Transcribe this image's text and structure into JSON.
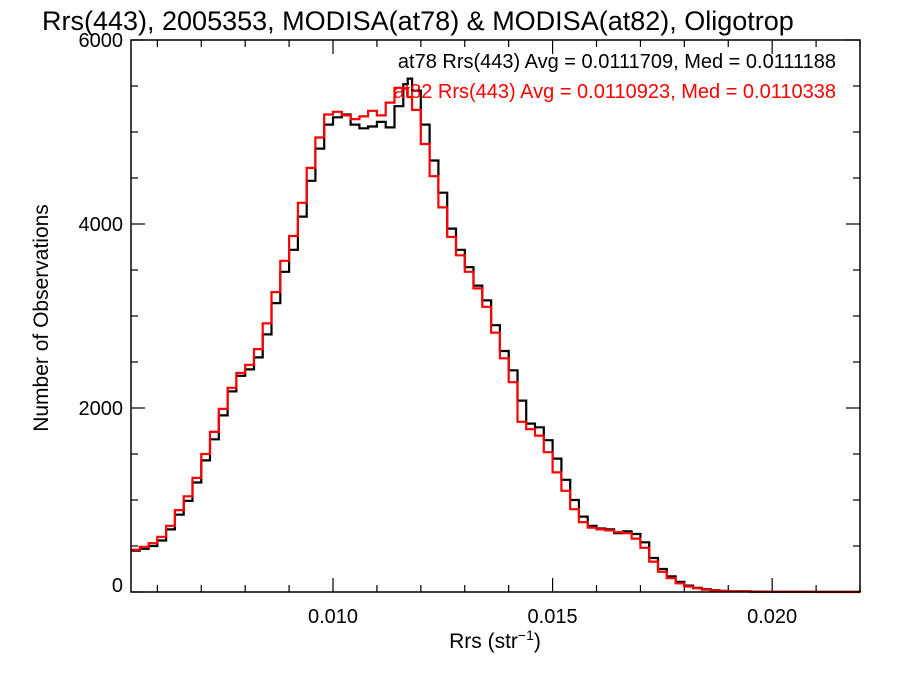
{
  "chart_data": {
    "type": "line",
    "style": "step-histogram",
    "title": "Rrs(443), 2005353, MODISA(at78) & MODISA(at82), Oligotrop",
    "xlabel": "Rrs (str",
    "xlabel_sup": "−1",
    "xlabel_close": ")",
    "ylabel": "Number of Observations",
    "xlim": [
      0.0054,
      0.022
    ],
    "ylim": [
      0,
      6000
    ],
    "x_ticks": [
      {
        "value": 0.01,
        "label": "0.010"
      },
      {
        "value": 0.015,
        "label": "0.015"
      },
      {
        "value": 0.02,
        "label": "0.020"
      }
    ],
    "y_ticks": [
      {
        "value": 0,
        "label": "0"
      },
      {
        "value": 2000,
        "label": "2000"
      },
      {
        "value": 4000,
        "label": "4000"
      },
      {
        "value": 6000,
        "label": "6000"
      }
    ],
    "annotations": [
      {
        "text": "at78 Rrs(443) Avg = 0.0111709, Med = 0.0111188",
        "color": "#000000"
      },
      {
        "text": "at82 Rrs(443) Avg = 0.0110923, Med = 0.0110338",
        "color": "#ff0000"
      }
    ],
    "series": [
      {
        "color": "#000000",
        "x": [
          0.0054,
          0.0056,
          0.0058,
          0.006,
          0.0062,
          0.0064,
          0.0066,
          0.0068,
          0.007,
          0.0072,
          0.0074,
          0.0076,
          0.0078,
          0.008,
          0.0082,
          0.0084,
          0.0086,
          0.0088,
          0.009,
          0.0092,
          0.0094,
          0.0096,
          0.0098,
          0.01,
          0.0102,
          0.0104,
          0.0106,
          0.0108,
          0.011,
          0.0112,
          0.0114,
          0.0116,
          0.0117,
          0.0118,
          0.012,
          0.0122,
          0.0124,
          0.0126,
          0.0128,
          0.013,
          0.0132,
          0.0134,
          0.0136,
          0.0138,
          0.014,
          0.0142,
          0.0144,
          0.0146,
          0.0148,
          0.015,
          0.0152,
          0.0154,
          0.0156,
          0.0158,
          0.016,
          0.0162,
          0.0164,
          0.0166,
          0.0168,
          0.017,
          0.0172,
          0.0174,
          0.0176,
          0.0178,
          0.018,
          0.0182,
          0.0184,
          0.0186,
          0.0188,
          0.019,
          0.0195,
          0.02,
          0.021,
          0.022
        ],
        "y": [
          450,
          470,
          500,
          560,
          680,
          840,
          990,
          1190,
          1430,
          1660,
          1920,
          2180,
          2350,
          2420,
          2550,
          2800,
          3140,
          3480,
          3720,
          4080,
          4470,
          4820,
          5080,
          5160,
          5190,
          5080,
          5040,
          5060,
          5110,
          5050,
          5280,
          5520,
          5580,
          5450,
          5080,
          4690,
          4340,
          3950,
          3720,
          3530,
          3330,
          3170,
          2900,
          2620,
          2410,
          2080,
          1830,
          1790,
          1650,
          1450,
          1220,
          1000,
          820,
          720,
          690,
          680,
          640,
          660,
          630,
          540,
          370,
          250,
          170,
          110,
          70,
          45,
          30,
          20,
          12,
          8,
          4,
          2,
          1,
          0
        ]
      },
      {
        "color": "#ff0000",
        "x": [
          0.0054,
          0.0056,
          0.0058,
          0.006,
          0.0062,
          0.0064,
          0.0066,
          0.0068,
          0.007,
          0.0072,
          0.0074,
          0.0076,
          0.0078,
          0.008,
          0.0082,
          0.0084,
          0.0086,
          0.0088,
          0.009,
          0.0092,
          0.0094,
          0.0096,
          0.0098,
          0.01,
          0.0102,
          0.0104,
          0.0106,
          0.0108,
          0.011,
          0.0112,
          0.0114,
          0.0116,
          0.0117,
          0.0118,
          0.012,
          0.0122,
          0.0124,
          0.0126,
          0.0128,
          0.013,
          0.0132,
          0.0134,
          0.0136,
          0.0138,
          0.014,
          0.0142,
          0.0144,
          0.0146,
          0.0148,
          0.015,
          0.0152,
          0.0154,
          0.0156,
          0.0158,
          0.016,
          0.0162,
          0.0164,
          0.0166,
          0.0168,
          0.017,
          0.0172,
          0.0174,
          0.0176,
          0.0178,
          0.018,
          0.0182,
          0.0184,
          0.0186,
          0.0188,
          0.019,
          0.0195,
          0.02,
          0.021,
          0.022
        ],
        "y": [
          460,
          490,
          530,
          600,
          720,
          890,
          1040,
          1240,
          1500,
          1740,
          1990,
          2220,
          2380,
          2470,
          2640,
          2920,
          3260,
          3600,
          3870,
          4230,
          4610,
          4940,
          5190,
          5220,
          5180,
          5140,
          5170,
          5230,
          5180,
          5320,
          5480,
          5470,
          5380,
          5240,
          4870,
          4520,
          4180,
          3860,
          3660,
          3480,
          3300,
          3100,
          2820,
          2540,
          2280,
          1850,
          1770,
          1700,
          1520,
          1300,
          1100,
          900,
          760,
          700,
          680,
          670,
          650,
          640,
          580,
          480,
          330,
          220,
          150,
          95,
          60,
          40,
          25,
          16,
          10,
          6,
          3,
          1,
          0,
          0
        ]
      }
    ]
  }
}
